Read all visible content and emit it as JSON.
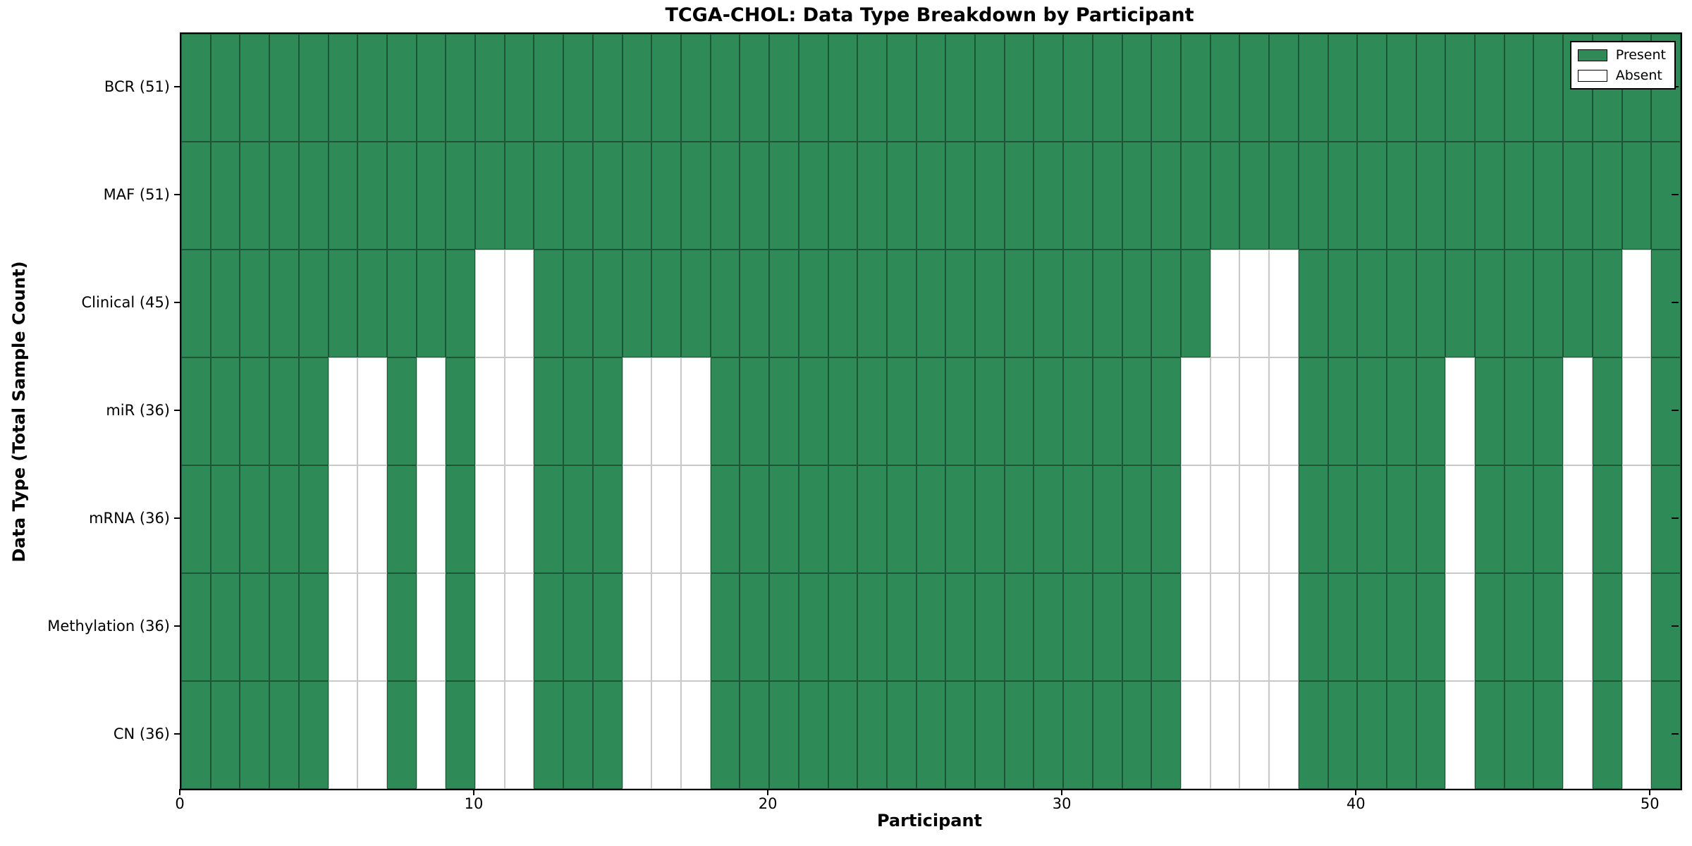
{
  "figure": {
    "title": "TCGA-CHOL: Data Type Breakdown by Participant",
    "xlabel": "Participant",
    "ylabel": "Data Type (Total Sample Count)"
  },
  "colors": {
    "present": "#2e8b57",
    "absent": "#ffffff",
    "edge_on_green": "rgba(0,0,0,0.38)",
    "edge_on_white": "#c9c9c9",
    "spine": "#000000"
  },
  "chart_data": {
    "type": "heatmap",
    "title": "TCGA-CHOL: Data Type Breakdown by Participant",
    "xlabel": "Participant",
    "ylabel": "Data Type (Total Sample Count)",
    "n_participants": 51,
    "xlim": [
      0,
      51
    ],
    "x_ticks": [
      0,
      10,
      20,
      30,
      40,
      50
    ],
    "grid": "cell-edges",
    "legend_position": "upper right",
    "legend": [
      {
        "label": "Present",
        "color": "#2e8b57"
      },
      {
        "label": "Absent",
        "color": "#ffffff"
      }
    ],
    "rows": [
      {
        "label": "BCR (51)",
        "data_type": "BCR",
        "present_count": 51,
        "absent_participants": []
      },
      {
        "label": "MAF (51)",
        "data_type": "MAF",
        "present_count": 51,
        "absent_participants": []
      },
      {
        "label": "Clinical (45)",
        "data_type": "Clinical",
        "present_count": 45,
        "absent_participants": [
          10,
          11,
          35,
          36,
          37,
          49
        ]
      },
      {
        "label": "miR (36)",
        "data_type": "miR",
        "present_count": 36,
        "absent_participants": [
          5,
          6,
          8,
          10,
          11,
          15,
          16,
          17,
          34,
          35,
          36,
          37,
          43,
          47,
          49
        ]
      },
      {
        "label": "mRNA (36)",
        "data_type": "mRNA",
        "present_count": 36,
        "absent_participants": [
          5,
          6,
          8,
          10,
          11,
          15,
          16,
          17,
          34,
          35,
          36,
          37,
          43,
          47,
          49
        ]
      },
      {
        "label": "Methylation (36)",
        "data_type": "Methylation",
        "present_count": 36,
        "absent_participants": [
          5,
          6,
          8,
          10,
          11,
          15,
          16,
          17,
          34,
          35,
          36,
          37,
          43,
          47,
          49
        ]
      },
      {
        "label": "CN (36)",
        "data_type": "CN",
        "present_count": 36,
        "absent_participants": [
          5,
          6,
          8,
          10,
          11,
          15,
          16,
          17,
          34,
          35,
          36,
          37,
          43,
          47,
          49
        ]
      }
    ]
  }
}
